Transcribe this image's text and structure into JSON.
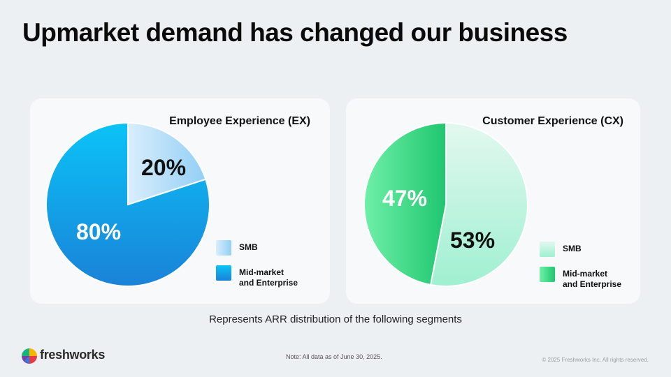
{
  "title": "Upmarket demand has changed our business",
  "caption": "Represents ARR distribution of the following segments",
  "note": "Note: All data as of June 30, 2025.",
  "copyright": "© 2025 Freshworks Inc. All rights reserved.",
  "logo_text": "freshworks",
  "chart_data": [
    {
      "type": "pie",
      "title": "Employee Experience (EX)",
      "slices": [
        {
          "label": "SMB",
          "value": 20,
          "value_label": "20%"
        },
        {
          "label": "Mid-market and Enterprise",
          "value": 80,
          "value_label": "80%"
        }
      ],
      "legend": [
        "SMB",
        "Mid-market\nand Enterprise"
      ],
      "colors": {
        "smb": [
          "#d9eefc",
          "#93cff5"
        ],
        "mid": [
          "#0bc3f7",
          "#1a82d8"
        ]
      }
    },
    {
      "type": "pie",
      "title": "Customer Experience (CX)",
      "slices": [
        {
          "label": "SMB",
          "value": 53,
          "value_label": "53%"
        },
        {
          "label": "Mid-market and Enterprise",
          "value": 47,
          "value_label": "47%"
        }
      ],
      "legend": [
        "SMB",
        "Mid-market\nand Enterprise"
      ],
      "colors": {
        "smb": [
          "#e3f8ef",
          "#9ff0d1"
        ],
        "mid": [
          "#6ff0a8",
          "#1fc66f"
        ]
      }
    }
  ]
}
